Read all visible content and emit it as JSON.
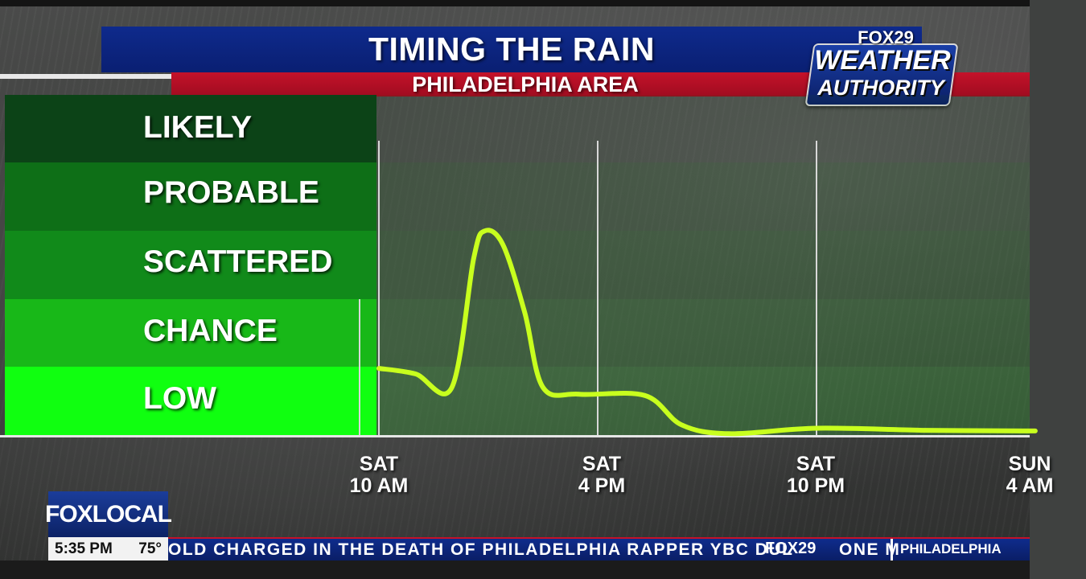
{
  "header": {
    "title": "TIMING THE RAIN",
    "subtitle": "PHILADELPHIA AREA"
  },
  "logo": {
    "network": "FOX29",
    "line1": "WEATHER",
    "line2": "AUTHORITY"
  },
  "chart_data": {
    "type": "line",
    "title": "TIMING THE RAIN",
    "subtitle": "PHILADELPHIA AREA",
    "y_categories": [
      "LOW",
      "CHANCE",
      "SCATTERED",
      "PROBABLE",
      "LIKELY"
    ],
    "x_ticks": [
      {
        "day": "SAT",
        "time": "10 AM",
        "hour": 0
      },
      {
        "day": "SAT",
        "time": "4 PM",
        "hour": 6
      },
      {
        "day": "SAT",
        "time": "10 PM",
        "hour": 12
      },
      {
        "day": "SUN",
        "time": "4 AM",
        "hour": 18
      }
    ],
    "series": [
      {
        "points": [
          {
            "hour": 0.0,
            "level": 0.98
          },
          {
            "hour": 1.0,
            "level": 0.9
          },
          {
            "hour": 2.0,
            "level": 0.7
          },
          {
            "hour": 2.6,
            "level": 2.6
          },
          {
            "hour": 2.9,
            "level": 3.0
          },
          {
            "hour": 3.4,
            "level": 2.8
          },
          {
            "hour": 4.0,
            "level": 1.8
          },
          {
            "hour": 4.5,
            "level": 0.7
          },
          {
            "hour": 5.5,
            "level": 0.6
          },
          {
            "hour": 7.3,
            "level": 0.58
          },
          {
            "hour": 8.3,
            "level": 0.15
          },
          {
            "hour": 9.6,
            "level": 0.02
          },
          {
            "hour": 12.0,
            "level": 0.1
          },
          {
            "hour": 15.0,
            "level": 0.07
          },
          {
            "hour": 18.0,
            "level": 0.06
          }
        ]
      }
    ],
    "colors": {
      "LOW": "#10ff10",
      "CHANCE": "#18b818",
      "SCATTERED": "#118a1a",
      "PROBABLE": "#0e6f17",
      "LIKELY": "#0c4317",
      "line": "#c8ff1e"
    }
  },
  "lower_third": {
    "brand": "FOXLOCAL",
    "time": "5:35 PM",
    "temperature": "75°"
  },
  "ticker": {
    "headline": "OLD CHARGED IN THE DEATH OF PHILADELPHIA RAPPER YBC DUL",
    "logo": "FOX29",
    "next": "ONE M",
    "location": "PHILADELPHIA"
  }
}
